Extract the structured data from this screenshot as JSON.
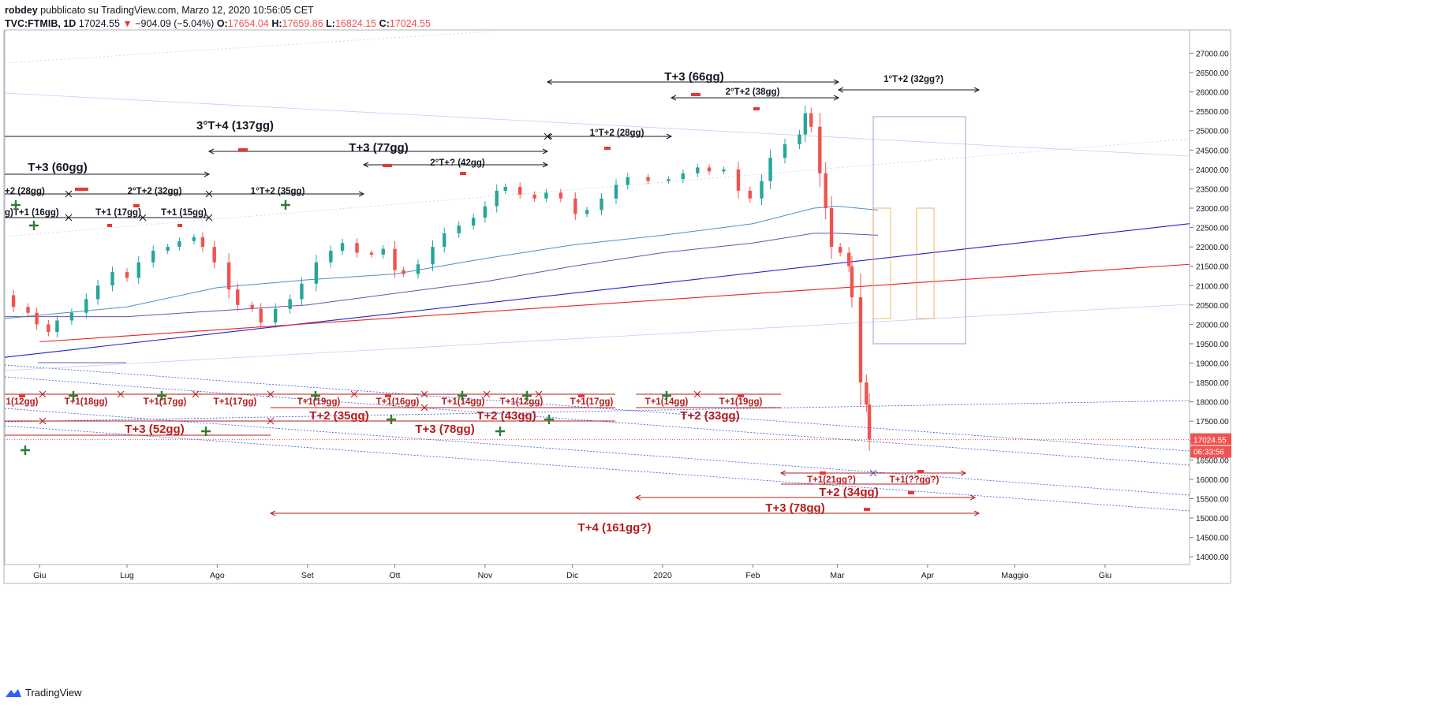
{
  "header": {
    "author": "robdey",
    "published": "pubblicato su TradingView.com, Marzo 12, 2020 10:56:05 CET",
    "symbol": "TVC:FTMIB, 1D",
    "last": "17024.55",
    "change": "−904.09 (−5.04%)",
    "o_label": "O:",
    "o": "17654.04",
    "h_label": "H:",
    "h": "17659.86",
    "l_label": "L:",
    "l": "16824.15",
    "c_label": "C:",
    "c": "17024.55"
  },
  "footer": {
    "brand": "TradingView"
  },
  "colors": {
    "up": "#26a69a",
    "down": "#ef5350",
    "annotation_black": "#131722",
    "annotation_red": "#b71c1c",
    "ma_blue": "#4a90c9",
    "ma_purple": "#6a4fb3",
    "trend_blue": "#2222cc",
    "trend_red": "#ee2222",
    "plus": "#2e7d32"
  },
  "chart_data": {
    "type": "candlestick",
    "title": "TVC:FTMIB, 1D",
    "y_axis": {
      "ticks": [
        27000,
        26500,
        26000,
        25500,
        25000,
        24500,
        24000,
        23500,
        23000,
        22500,
        22000,
        21500,
        21000,
        20500,
        20000,
        19500,
        19000,
        18500,
        18000,
        17500,
        17000,
        16500,
        16000,
        15500,
        15000,
        14500,
        14000
      ],
      "tick_labels": [
        "27000.00",
        "26500.00",
        "26000.00",
        "25500.00",
        "25000.00",
        "24500.00",
        "24000.00",
        "23500.00",
        "23000.00",
        "22500.00",
        "22000.00",
        "21500.00",
        "21000.00",
        "20500.00",
        "20000.00",
        "19500.00",
        "19000.00",
        "18500.00",
        "18000.00",
        "17500.00",
        "17000.00",
        "16500.00",
        "16000.00",
        "15500.00",
        "15000.00",
        "14500.00",
        "14000.00"
      ],
      "range": [
        13800,
        27600
      ]
    },
    "x_axis": {
      "labels": [
        "Giu",
        "Lug",
        "Ago",
        "Set",
        "Ott",
        "Nov",
        "Dic",
        "2020",
        "Feb",
        "Mar",
        "Apr",
        "Maggio",
        "Giu"
      ],
      "label_dates": [
        "2019-06-01",
        "2019-07-01",
        "2019-08-01",
        "2019-09-01",
        "2019-10-01",
        "2019-11-01",
        "2019-12-01",
        "2020-01-01",
        "2020-02-01",
        "2020-03-01",
        "2020-04-01",
        "2020-05-01",
        "2020-06-01"
      ],
      "range": [
        "2019-05-20",
        "2020-06-30"
      ]
    },
    "price_label": "17024.55",
    "countdown_label": "06:33:56",
    "close_series": [
      [
        "2019-05-20",
        20750
      ],
      [
        "2019-05-23",
        20450
      ],
      [
        "2019-05-28",
        20300
      ],
      [
        "2019-05-31",
        20000
      ],
      [
        "2019-06-04",
        19800
      ],
      [
        "2019-06-07",
        20100
      ],
      [
        "2019-06-12",
        20300
      ],
      [
        "2019-06-17",
        20650
      ],
      [
        "2019-06-21",
        21000
      ],
      [
        "2019-06-26",
        21350
      ],
      [
        "2019-07-01",
        21200
      ],
      [
        "2019-07-05",
        21600
      ],
      [
        "2019-07-10",
        21900
      ],
      [
        "2019-07-15",
        22000
      ],
      [
        "2019-07-19",
        22150
      ],
      [
        "2019-07-24",
        22250
      ],
      [
        "2019-07-27",
        22000
      ],
      [
        "2019-07-31",
        21600
      ],
      [
        "2019-08-05",
        20900
      ],
      [
        "2019-08-08",
        20500
      ],
      [
        "2019-08-13",
        20400
      ],
      [
        "2019-08-16",
        20050
      ],
      [
        "2019-08-21",
        20400
      ],
      [
        "2019-08-26",
        20650
      ],
      [
        "2019-08-30",
        21050
      ],
      [
        "2019-09-04",
        21600
      ],
      [
        "2019-09-09",
        21900
      ],
      [
        "2019-09-13",
        22100
      ],
      [
        "2019-09-18",
        21850
      ],
      [
        "2019-09-23",
        21800
      ],
      [
        "2019-09-27",
        21950
      ],
      [
        "2019-10-01",
        21400
      ],
      [
        "2019-10-04",
        21300
      ],
      [
        "2019-10-09",
        21550
      ],
      [
        "2019-10-14",
        22000
      ],
      [
        "2019-10-18",
        22350
      ],
      [
        "2019-10-23",
        22550
      ],
      [
        "2019-10-28",
        22750
      ],
      [
        "2019-11-01",
        23050
      ],
      [
        "2019-11-05",
        23450
      ],
      [
        "2019-11-08",
        23550
      ],
      [
        "2019-11-13",
        23350
      ],
      [
        "2019-11-18",
        23250
      ],
      [
        "2019-11-22",
        23400
      ],
      [
        "2019-11-27",
        23250
      ],
      [
        "2019-12-02",
        22850
      ],
      [
        "2019-12-06",
        22950
      ],
      [
        "2019-12-11",
        23250
      ],
      [
        "2019-12-16",
        23600
      ],
      [
        "2019-12-20",
        23800
      ],
      [
        "2019-12-27",
        23700
      ],
      [
        "2020-01-03",
        23750
      ],
      [
        "2020-01-08",
        23900
      ],
      [
        "2020-01-13",
        24050
      ],
      [
        "2020-01-17",
        23950
      ],
      [
        "2020-01-22",
        24000
      ],
      [
        "2020-01-27",
        23450
      ],
      [
        "2020-01-31",
        23250
      ],
      [
        "2020-02-04",
        23700
      ],
      [
        "2020-02-07",
        24300
      ],
      [
        "2020-02-12",
        24650
      ],
      [
        "2020-02-17",
        24900
      ],
      [
        "2020-02-19",
        25450
      ],
      [
        "2020-02-21",
        25100
      ],
      [
        "2020-02-24",
        23900
      ],
      [
        "2020-02-26",
        23000
      ],
      [
        "2020-02-28",
        22000
      ],
      [
        "2020-03-02",
        21850
      ],
      [
        "2020-03-05",
        21500
      ],
      [
        "2020-03-06",
        20700
      ],
      [
        "2020-03-09",
        18500
      ],
      [
        "2020-03-11",
        17930
      ],
      [
        "2020-03-12",
        17024
      ]
    ],
    "moving_averages": [
      {
        "points": [
          [
            "2019-05-20",
            20150
          ],
          [
            "2019-07-01",
            20450
          ],
          [
            "2019-08-01",
            20950
          ],
          [
            "2019-09-01",
            21150
          ],
          [
            "2019-10-01",
            21300
          ],
          [
            "2019-11-01",
            21700
          ],
          [
            "2019-12-01",
            22050
          ],
          [
            "2020-01-01",
            22300
          ],
          [
            "2020-02-01",
            22600
          ],
          [
            "2020-02-22",
            23000
          ],
          [
            "2020-03-01",
            23050
          ],
          [
            "2020-03-15",
            22950
          ]
        ]
      },
      {
        "points": [
          [
            "2019-05-20",
            20200
          ],
          [
            "2019-07-01",
            20200
          ],
          [
            "2019-08-01",
            20350
          ],
          [
            "2019-09-01",
            20500
          ],
          [
            "2019-10-01",
            20800
          ],
          [
            "2019-11-01",
            21100
          ],
          [
            "2019-12-01",
            21500
          ],
          [
            "2020-01-01",
            21850
          ],
          [
            "2020-02-01",
            22100
          ],
          [
            "2020-02-22",
            22350
          ],
          [
            "2020-03-01",
            22350
          ],
          [
            "2020-03-15",
            22300
          ]
        ]
      }
    ],
    "trend_lines": [
      {
        "name": "blue-support",
        "from": [
          "2019-05-20",
          19150
        ],
        "to": [
          "2020-06-30",
          22600
        ]
      },
      {
        "name": "red-support",
        "from": [
          "2019-06-01",
          19550
        ],
        "to": [
          "2020-06-30",
          21550
        ]
      }
    ],
    "cycle_labels": {
      "black": [
        "T+3 (66gg)",
        "1°T+2 (32gg?)",
        "2°T+2 (38gg)",
        "3°T+4 (137gg)",
        "1°T+2 (28gg)",
        "T+3 (77gg)",
        "T+3 (60gg)",
        "2°T+? (42gg)",
        "+2 (28gg)",
        "2°T+2 (32gg)",
        "1°T+2 (35gg)",
        "g)T+1 (16gg)",
        "T+1 (17gg)",
        "T+1 (15gg)"
      ],
      "red_row1": [
        "1(12gg)",
        "T+1(18gg)",
        "T+1(17gg)",
        "T+1(17gg)",
        "T+1(19gg)",
        "T+1(16gg)",
        "T+1(14gg)",
        "T+1(12gg)",
        "T+1(17gg)",
        "T+1(14gg)",
        "T+1(19gg)"
      ],
      "red_row2": [
        "T+2 (35gg)",
        "T+2 (43gg)",
        "T+2 (33gg)"
      ],
      "red_row3": [
        "T+3 (52gg)",
        "T+3 (78gg)"
      ],
      "red_future": [
        "T+1(21gg?)",
        "T+1(??gg?)",
        "T+2 (34gg)",
        "T+3 (78gg)",
        "T+4 (161gg?)"
      ]
    }
  }
}
